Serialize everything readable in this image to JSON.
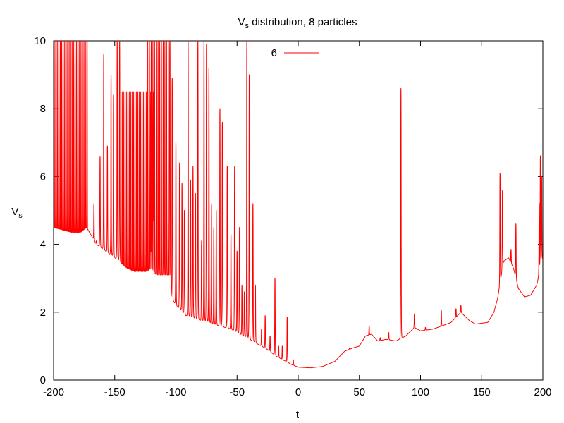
{
  "chart_data": {
    "type": "line",
    "title": "V",
    "title_sub": "s",
    "title_rest": " distribution, 8 particles",
    "xlabel": "t",
    "ylabel": "V",
    "ylabel_sub": "s",
    "xlim": [
      -200,
      200
    ],
    "ylim": [
      0,
      10
    ],
    "xticks": [
      "-200",
      "-150",
      "-100",
      "-50",
      "0",
      "50",
      "100",
      "150",
      "200"
    ],
    "yticks": [
      "0",
      "2",
      "4",
      "6",
      "8",
      "10"
    ],
    "grid": false,
    "legend_position": "top-center",
    "series": [
      {
        "name": "6",
        "color": "#ff0000",
        "baseline": [
          [
            -200,
            4.5
          ],
          [
            -190,
            4.4
          ],
          [
            -185,
            4.35
          ],
          [
            -178,
            4.35
          ],
          [
            -173,
            4.5
          ],
          [
            -165,
            4.0
          ],
          [
            -150,
            3.6
          ],
          [
            -140,
            3.3
          ],
          [
            -128,
            3.1
          ],
          [
            -120,
            3.3
          ],
          [
            -110,
            2.8
          ],
          [
            -100,
            2.2
          ],
          [
            -92,
            1.9
          ],
          [
            -84,
            1.8
          ],
          [
            -75,
            1.7
          ],
          [
            -65,
            1.6
          ],
          [
            -55,
            1.5
          ],
          [
            -45,
            1.3
          ],
          [
            -35,
            1.1
          ],
          [
            -25,
            0.9
          ],
          [
            -18,
            0.7
          ],
          [
            -10,
            0.55
          ],
          [
            -5,
            0.45
          ],
          [
            0,
            0.38
          ],
          [
            10,
            0.36
          ],
          [
            20,
            0.4
          ],
          [
            30,
            0.55
          ],
          [
            38,
            0.85
          ],
          [
            45,
            0.95
          ],
          [
            50,
            1.0
          ],
          [
            55,
            1.3
          ],
          [
            60,
            1.35
          ],
          [
            65,
            1.15
          ],
          [
            72,
            1.2
          ],
          [
            80,
            1.15
          ],
          [
            88,
            1.3
          ],
          [
            95,
            1.55
          ],
          [
            100,
            1.45
          ],
          [
            110,
            1.5
          ],
          [
            118,
            1.6
          ],
          [
            125,
            1.7
          ],
          [
            133,
            2.0
          ],
          [
            140,
            1.75
          ],
          [
            145,
            1.65
          ],
          [
            155,
            1.7
          ],
          [
            160,
            2.0
          ],
          [
            163,
            2.4
          ],
          [
            168,
            3.5
          ],
          [
            172,
            3.6
          ],
          [
            176,
            3.3
          ],
          [
            180,
            2.7
          ],
          [
            185,
            2.45
          ],
          [
            190,
            2.5
          ],
          [
            195,
            2.8
          ],
          [
            200,
            3.6
          ]
        ],
        "peaks": [
          [
            -170,
            3.9
          ],
          [
            -167,
            5.2
          ],
          [
            -165,
            4.1
          ],
          [
            -162,
            6.6
          ],
          [
            -159,
            9.6
          ],
          [
            -156,
            6.9
          ],
          [
            -153,
            9.0
          ],
          [
            -151,
            8.4
          ],
          [
            -148,
            10.0
          ],
          [
            -146,
            10.0
          ],
          [
            -105,
            10.0
          ],
          [
            -103,
            8.9
          ],
          [
            -100,
            7.0
          ],
          [
            -97,
            6.4
          ],
          [
            -95,
            5.8
          ],
          [
            -93,
            5.0
          ],
          [
            -90,
            10.0
          ],
          [
            -88,
            5.9
          ],
          [
            -86,
            6.3
          ],
          [
            -84,
            5.5
          ],
          [
            -82,
            10.0
          ],
          [
            -79,
            4.1
          ],
          [
            -77,
            10.0
          ],
          [
            -75,
            9.9
          ],
          [
            -73,
            9.2
          ],
          [
            -71,
            5.2
          ],
          [
            -69,
            4.5
          ],
          [
            -67,
            5.0
          ],
          [
            -64,
            8.0
          ],
          [
            -62,
            7.6
          ],
          [
            -58,
            6.3
          ],
          [
            -55,
            4.3
          ],
          [
            -52,
            6.3
          ],
          [
            -50,
            3.8
          ],
          [
            -48,
            4.5
          ],
          [
            -46,
            2.8
          ],
          [
            -44,
            2.6
          ],
          [
            -42,
            10.0
          ],
          [
            -40,
            9.0
          ],
          [
            -37,
            5.2
          ],
          [
            -35,
            2.8
          ],
          [
            -30,
            1.5
          ],
          [
            -27,
            1.9
          ],
          [
            -23,
            1.3
          ],
          [
            -19,
            3.0
          ],
          [
            -16,
            1.0
          ],
          [
            -13,
            1.0
          ],
          [
            -9,
            1.85
          ],
          [
            -4,
            0.6
          ],
          [
            42,
            0.95
          ],
          [
            58,
            1.6
          ],
          [
            67,
            1.25
          ],
          [
            74,
            1.4
          ],
          [
            84,
            8.6
          ],
          [
            95,
            1.95
          ],
          [
            104,
            1.55
          ],
          [
            117,
            2.05
          ],
          [
            129,
            2.1
          ],
          [
            133,
            2.2
          ],
          [
            165,
            6.1
          ],
          [
            167,
            5.6
          ],
          [
            174,
            3.85
          ],
          [
            178,
            4.6
          ],
          [
            197,
            5.2
          ],
          [
            198,
            6.6
          ],
          [
            199,
            6.0
          ]
        ],
        "dense_bands": [
          {
            "x_range": [
              -200,
              -172
            ],
            "low": 4.35,
            "high": 10.0,
            "period": 1.1
          },
          {
            "x_range": [
              -146,
              -118
            ],
            "low": 3.2,
            "high": 8.5,
            "period": 1.15
          },
          {
            "x_range": [
              -123,
              -104
            ],
            "low": 3.1,
            "high": 10.0,
            "period": 1.4
          }
        ]
      }
    ]
  }
}
